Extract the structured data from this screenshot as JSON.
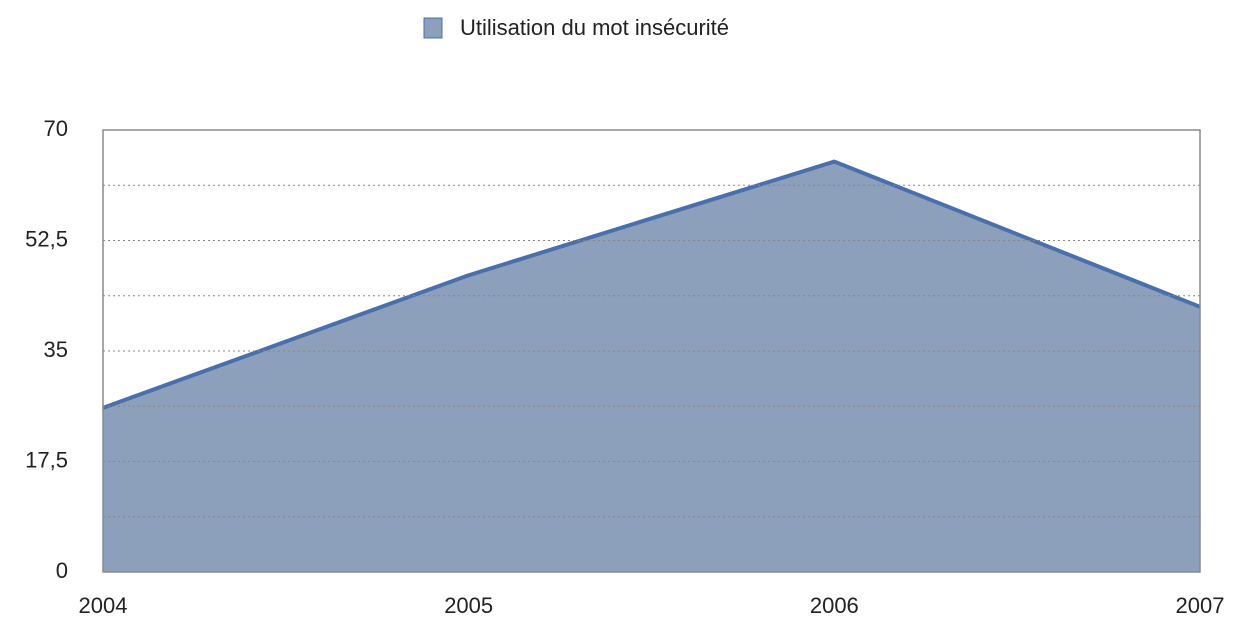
{
  "chart_data": {
    "type": "area",
    "categories": [
      "2004",
      "2005",
      "2006",
      "2007"
    ],
    "series": [
      {
        "name": "Utilisation du mot insécurité",
        "color": "#8c9fbb",
        "line_color": "#4a6fad",
        "values": [
          26,
          47,
          65,
          42
        ]
      }
    ],
    "ylim": [
      0,
      70
    ],
    "yticks": [
      0,
      {
        "value": 17.5,
        "label": "17,5"
      },
      35,
      {
        "value": 52.5,
        "label": "52,5"
      },
      70
    ],
    "grid": true,
    "legend": "top"
  }
}
